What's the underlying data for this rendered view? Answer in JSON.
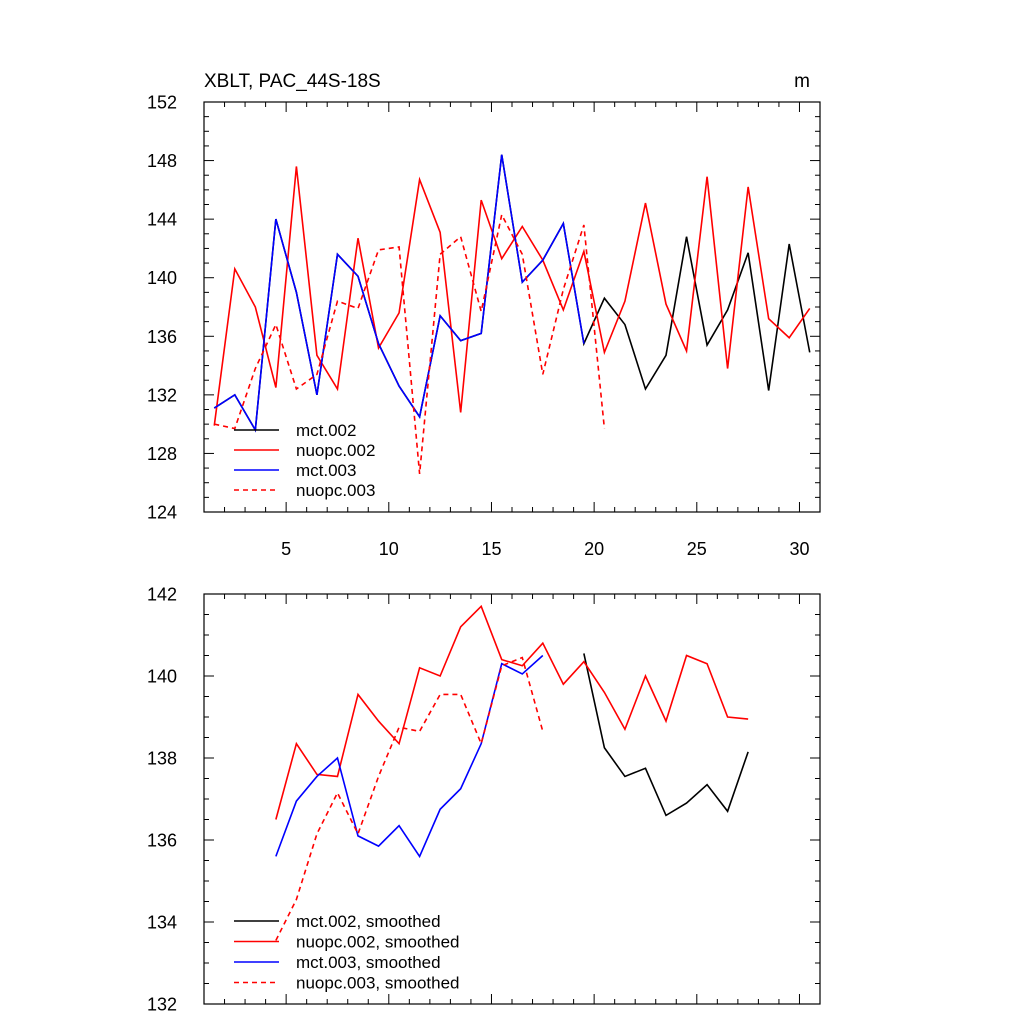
{
  "chart_data": [
    {
      "type": "line",
      "title": "XBLT, PAC_44S-18S",
      "units": "m",
      "xlim": [
        1,
        31
      ],
      "ylim": [
        124,
        152
      ],
      "xticks": [
        5,
        10,
        15,
        20,
        25,
        30
      ],
      "yticks": [
        124,
        128,
        132,
        136,
        140,
        144,
        148,
        152
      ],
      "legend_position": "lower-left",
      "series": [
        {
          "name": "mct.002",
          "color": "#000000",
          "dash": "solid",
          "x": [
            1.5,
            2.5,
            3.5,
            4.5,
            5.5,
            6.5,
            7.5,
            8.5,
            9.5,
            10.5,
            11.5,
            12.5,
            13.5,
            14.5,
            15.5,
            16.5,
            17.5,
            18.5,
            19.5,
            20.5,
            21.5,
            22.5,
            23.5,
            24.5,
            25.5,
            26.5,
            27.5,
            28.5,
            29.5,
            30.5
          ],
          "values": [
            131.1,
            132.0,
            129.6,
            144.0,
            139.0,
            132.0,
            141.6,
            140.1,
            135.5,
            132.6,
            130.5,
            137.4,
            135.7,
            136.2,
            148.4,
            139.7,
            141.2,
            143.7,
            135.5,
            138.6,
            136.8,
            132.4,
            134.7,
            142.8,
            135.4,
            137.8,
            141.7,
            132.3,
            142.3,
            134.9
          ]
        },
        {
          "name": "nuopc.002",
          "color": "#ff0000",
          "dash": "solid",
          "x": [
            1.5,
            2.5,
            3.5,
            4.5,
            5.5,
            6.5,
            7.5,
            8.5,
            9.5,
            10.5,
            11.5,
            12.5,
            13.5,
            14.5,
            15.5,
            16.5,
            17.5,
            18.5,
            19.5,
            20.5,
            21.5,
            22.5,
            23.5,
            24.5,
            25.5,
            26.5,
            27.5,
            28.5,
            29.5,
            30.5
          ],
          "values": [
            129.9,
            140.6,
            138.0,
            132.5,
            147.6,
            134.7,
            132.4,
            142.7,
            135.2,
            137.6,
            146.7,
            143.1,
            130.8,
            145.3,
            141.3,
            143.5,
            141.2,
            137.8,
            141.8,
            134.9,
            138.4,
            145.1,
            138.2,
            135.0,
            146.9,
            133.8,
            146.2,
            137.2,
            135.9,
            137.9
          ]
        },
        {
          "name": "mct.003",
          "color": "#0000ff",
          "dash": "solid",
          "x": [
            1.5,
            2.5,
            3.5,
            4.5,
            5.5,
            6.5,
            7.5,
            8.5,
            9.5,
            10.5,
            11.5,
            12.5,
            13.5,
            14.5,
            15.5,
            16.5,
            17.5,
            18.5,
            19.5
          ],
          "values": [
            131.1,
            132.0,
            129.6,
            144.0,
            139.0,
            132.0,
            141.6,
            140.1,
            135.5,
            132.6,
            130.5,
            137.4,
            135.7,
            136.2,
            148.4,
            139.7,
            141.2,
            143.7,
            135.5
          ]
        },
        {
          "name": "nuopc.003",
          "color": "#ff0000",
          "dash": "dashed",
          "x": [
            1.5,
            2.5,
            3.5,
            4.5,
            5.5,
            6.5,
            7.5,
            8.5,
            9.5,
            10.5,
            11.5,
            12.5,
            13.5,
            14.5,
            15.5,
            16.5,
            17.5,
            18.5,
            19.5,
            20.5
          ],
          "values": [
            130.0,
            129.7,
            133.8,
            136.8,
            132.4,
            133.4,
            138.4,
            137.9,
            141.9,
            142.1,
            126.6,
            141.6,
            142.8,
            137.7,
            144.3,
            141.6,
            133.4,
            139.2,
            143.6,
            129.7
          ]
        }
      ]
    },
    {
      "type": "line",
      "title": "",
      "xlim": [
        1,
        31
      ],
      "ylim": [
        132,
        142
      ],
      "xticks": [
        5,
        10,
        15,
        20,
        25,
        30
      ],
      "yticks": [
        132,
        134,
        136,
        138,
        140,
        142
      ],
      "show_x_labels": false,
      "legend_position": "lower-left",
      "series": [
        {
          "name": "mct.002, smoothed",
          "color": "#000000",
          "dash": "solid",
          "x": [
            19.5,
            20.5,
            21.5,
            22.5,
            23.5,
            24.5,
            25.5,
            26.5,
            27.5
          ],
          "values": [
            140.55,
            138.25,
            137.55,
            137.75,
            136.6,
            136.9,
            137.35,
            136.7,
            138.15
          ]
        },
        {
          "name": "nuopc.002, smoothed",
          "color": "#ff0000",
          "dash": "solid",
          "x": [
            4.5,
            5.5,
            6.5,
            7.5,
            8.5,
            9.5,
            10.5,
            11.5,
            12.5,
            13.5,
            14.5,
            15.5,
            16.5,
            17.5,
            18.5,
            19.5,
            20.5,
            21.5,
            22.5,
            23.5,
            24.5,
            25.5,
            26.5,
            27.5
          ],
          "values": [
            136.5,
            138.35,
            137.6,
            137.55,
            139.55,
            138.9,
            138.35,
            140.2,
            140.0,
            141.2,
            141.7,
            140.4,
            140.25,
            140.8,
            139.8,
            140.35,
            139.6,
            138.7,
            140.0,
            138.9,
            140.5,
            140.3,
            139.0,
            138.95
          ]
        },
        {
          "name": "mct.003, smoothed",
          "color": "#0000ff",
          "dash": "solid",
          "x": [
            4.5,
            5.5,
            6.5,
            7.5,
            8.5,
            9.5,
            10.5,
            11.5,
            12.5,
            13.5,
            14.5,
            15.5,
            16.5,
            17.5
          ],
          "values": [
            135.6,
            136.95,
            137.55,
            138.0,
            136.1,
            135.85,
            136.35,
            135.6,
            136.75,
            137.25,
            138.35,
            140.3,
            140.05,
            140.5
          ]
        },
        {
          "name": "nuopc.003, smoothed",
          "color": "#ff0000",
          "dash": "dashed",
          "x": [
            4.5,
            5.5,
            6.5,
            7.5,
            8.5,
            9.5,
            10.5,
            11.5,
            12.5,
            13.5,
            14.5,
            15.5,
            16.5,
            17.5
          ],
          "values": [
            133.55,
            134.55,
            136.15,
            137.15,
            136.15,
            137.55,
            138.75,
            138.65,
            139.55,
            139.55,
            138.35,
            140.25,
            140.45,
            138.65
          ]
        }
      ]
    }
  ]
}
